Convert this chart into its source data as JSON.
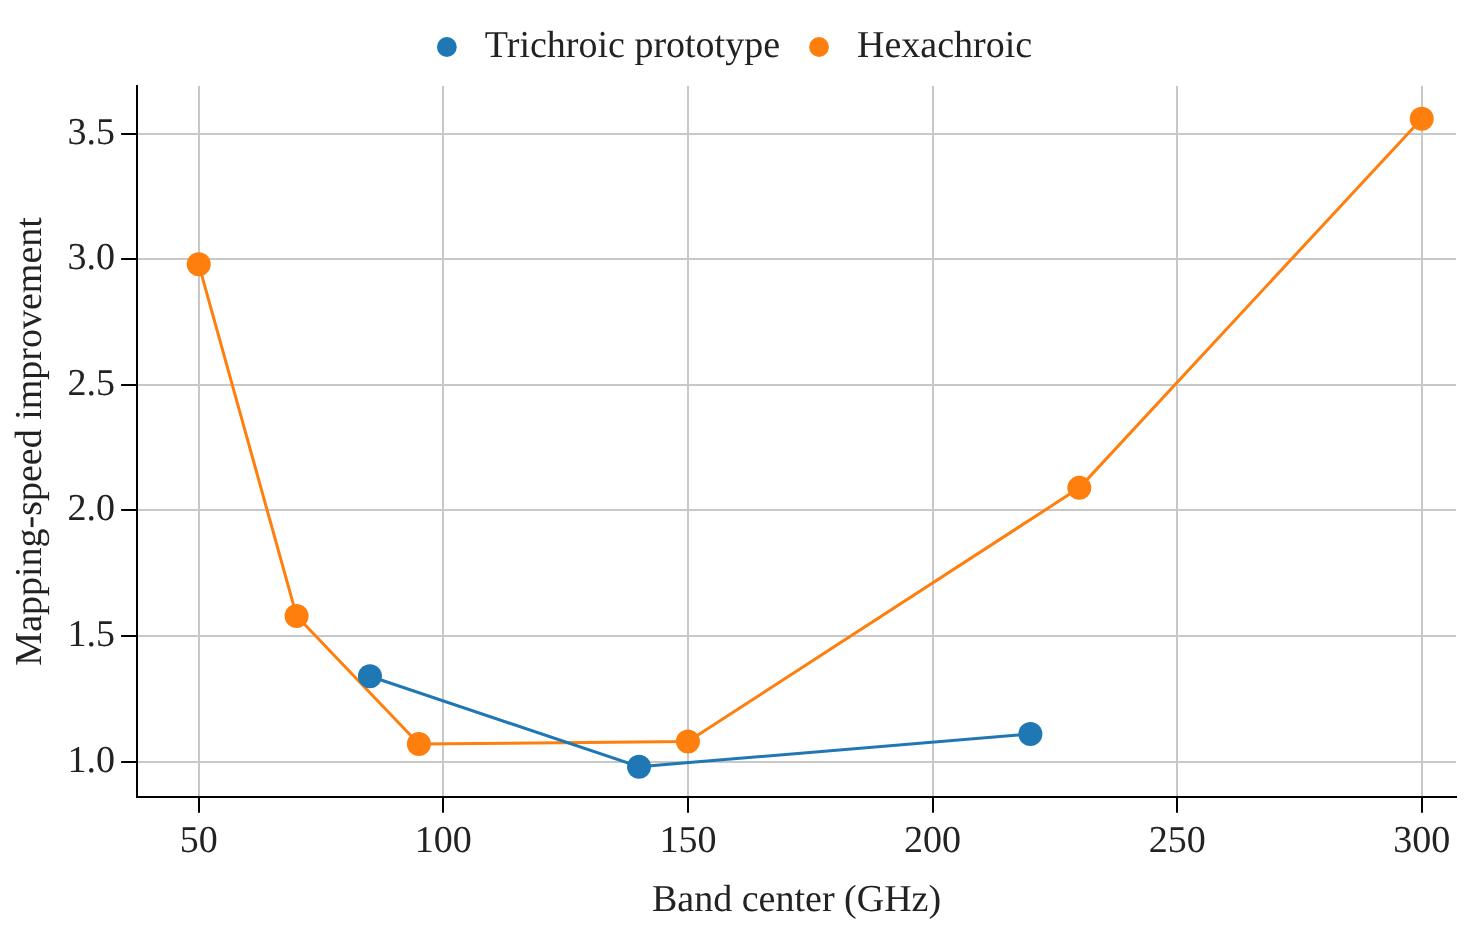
{
  "chart_data": {
    "type": "line",
    "xlabel": "Band center (GHz)",
    "ylabel": "Mapping-speed improvement",
    "xlim": [
      37.4,
      307
    ],
    "xticks": [
      50,
      100,
      150,
      200,
      250,
      300
    ],
    "ylim": [
      0.86,
      3.69
    ],
    "yticks": [
      {
        "value": 1,
        "label": "1.0"
      },
      1.5,
      {
        "value": 2,
        "label": "2.0"
      },
      2.5,
      {
        "value": 3,
        "label": "3.0"
      },
      3.5
    ],
    "grid": true,
    "legend": "top",
    "marker": "circle",
    "line_style": "solid",
    "series": [
      {
        "name": "Trichroic prototype",
        "color": "#1f77b4",
        "x": [
          85,
          140,
          220
        ],
        "values": [
          1.34,
          0.98,
          1.11
        ]
      },
      {
        "name": "Hexachroic",
        "color": "#ff7f0e",
        "x": [
          50,
          70,
          95,
          150,
          230,
          300
        ],
        "values": [
          2.98,
          1.58,
          1.07,
          1.08,
          2.09,
          3.56
        ]
      }
    ]
  }
}
